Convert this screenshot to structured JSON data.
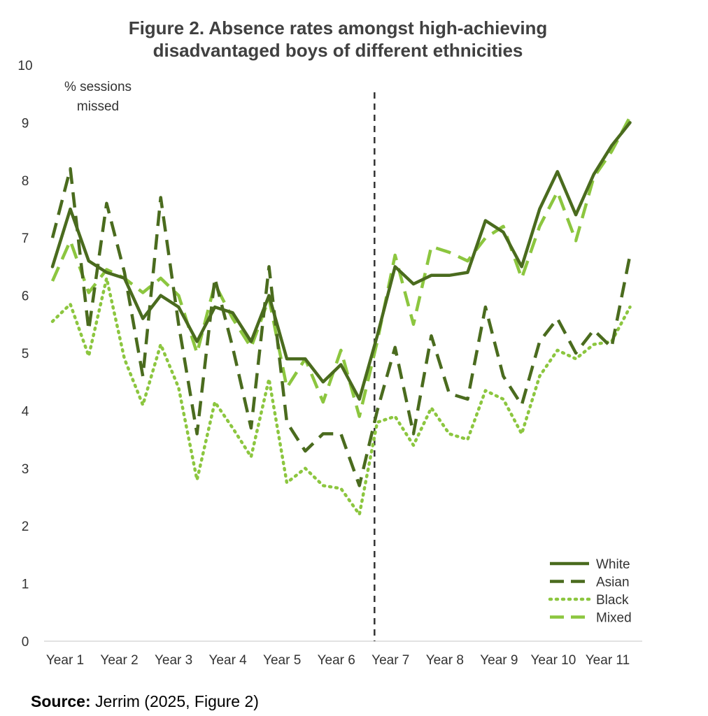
{
  "chart_data": {
    "type": "line",
    "title_line1": "Figure 2. Absence rates amongst high-achieving",
    "title_line2": "disadvantaged boys of different ethnicities",
    "ylabel_line1": "% sessions",
    "ylabel_line2": "missed",
    "ylim": [
      0,
      10
    ],
    "yticks": [
      0,
      1,
      2,
      3,
      4,
      5,
      6,
      7,
      8,
      9,
      10
    ],
    "xlim": [
      0,
      11
    ],
    "categories": [
      "Year 1",
      "Year 2",
      "Year 3",
      "Year 4",
      "Year 5",
      "Year 6",
      "Year 7",
      "Year 8",
      "Year 9",
      "Year 10",
      "Year 11"
    ],
    "vertical_marker_x": 5.95,
    "legend_position": "bottom-right",
    "grid": false,
    "series": [
      {
        "name": "White",
        "color": "#4a6b1e",
        "style": "solid",
        "x": [
          0,
          0.33,
          0.67,
          1,
          1.33,
          1.67,
          2,
          2.33,
          2.67,
          3,
          3.33,
          3.67,
          4,
          4.33,
          4.67,
          5,
          5.33,
          5.67,
          6,
          6.33,
          6.67,
          7,
          7.33,
          7.67,
          8,
          8.33,
          8.67,
          9,
          9.33,
          9.67,
          10,
          10.33,
          10.67
        ],
        "y": [
          6.5,
          7.5,
          6.6,
          6.4,
          6.3,
          5.6,
          6.0,
          5.8,
          5.2,
          5.8,
          5.7,
          5.2,
          6.0,
          4.9,
          4.9,
          4.5,
          4.8,
          4.2,
          5.3,
          6.5,
          6.2,
          6.35,
          6.35,
          6.4,
          7.3,
          7.1,
          6.5,
          7.5,
          8.15,
          7.4,
          8.1,
          8.6,
          9.0
        ]
      },
      {
        "name": "Asian",
        "color": "#4a6b1e",
        "style": "dashed",
        "x": [
          0,
          0.33,
          0.67,
          1,
          1.33,
          1.67,
          2,
          2.33,
          2.67,
          3,
          3.33,
          3.67,
          4,
          4.33,
          4.67,
          5,
          5.33,
          5.67,
          6,
          6.33,
          6.67,
          7,
          7.33,
          7.67,
          8,
          8.33,
          8.67,
          9,
          9.33,
          9.67,
          10,
          10.33,
          10.67
        ],
        "y": [
          7.0,
          8.2,
          5.4,
          7.6,
          6.4,
          4.6,
          7.7,
          5.5,
          3.6,
          6.3,
          5.1,
          3.7,
          6.5,
          3.8,
          3.3,
          3.6,
          3.6,
          2.7,
          4.0,
          5.1,
          3.6,
          5.3,
          4.3,
          4.2,
          5.8,
          4.6,
          4.1,
          5.2,
          5.6,
          5.0,
          5.4,
          5.1,
          6.7
        ]
      },
      {
        "name": "Black",
        "color": "#8cc63f",
        "style": "dotted",
        "x": [
          0,
          0.33,
          0.67,
          1,
          1.33,
          1.67,
          2,
          2.33,
          2.67,
          3,
          3.33,
          3.67,
          4,
          4.33,
          4.67,
          5,
          5.33,
          5.67,
          6,
          6.33,
          6.67,
          7,
          7.33,
          7.67,
          8,
          8.33,
          8.67,
          9,
          9.33,
          9.67,
          10,
          10.33,
          10.67
        ],
        "y": [
          5.55,
          5.85,
          4.95,
          6.3,
          4.9,
          4.1,
          5.15,
          4.4,
          2.8,
          4.15,
          3.7,
          3.2,
          4.55,
          2.75,
          3.0,
          2.7,
          2.65,
          2.2,
          3.8,
          3.9,
          3.4,
          4.05,
          3.6,
          3.5,
          4.35,
          4.2,
          3.6,
          4.6,
          5.05,
          4.9,
          5.15,
          5.2,
          5.8
        ]
      },
      {
        "name": "Mixed",
        "color": "#8cc63f",
        "style": "dashed",
        "x": [
          0,
          0.33,
          0.67,
          1,
          1.33,
          1.67,
          2,
          2.33,
          2.67,
          3,
          3.33,
          3.67,
          4,
          4.33,
          4.67,
          5,
          5.33,
          5.67,
          6,
          6.33,
          6.67,
          7,
          7.33,
          7.67,
          8,
          8.33,
          8.67,
          9,
          9.33,
          9.67,
          10,
          10.33,
          10.67
        ],
        "y": [
          6.25,
          6.95,
          6.05,
          6.45,
          6.3,
          6.05,
          6.3,
          6.0,
          5.0,
          6.2,
          5.6,
          5.1,
          5.95,
          4.4,
          4.9,
          4.15,
          5.05,
          3.9,
          5.2,
          6.7,
          5.5,
          6.85,
          6.75,
          6.6,
          7.0,
          7.2,
          6.3,
          7.2,
          7.8,
          6.95,
          8.05,
          8.5,
          9.1
        ]
      }
    ]
  },
  "source": {
    "label": "Source:",
    "text": " Jerrim (2025, Figure 2)"
  }
}
